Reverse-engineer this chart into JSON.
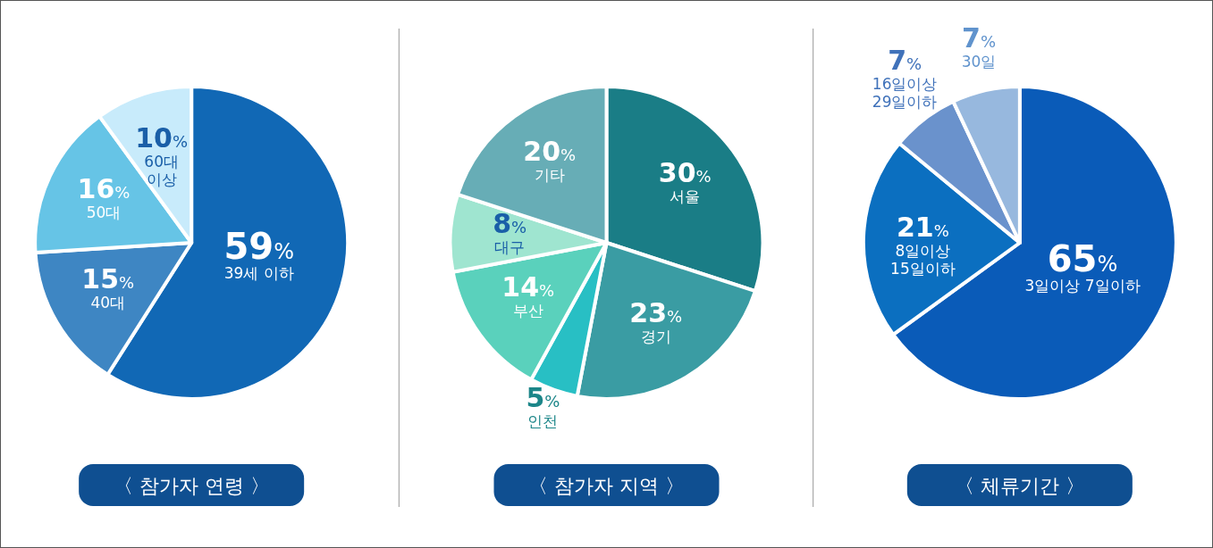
{
  "chart_data": [
    {
      "type": "pie",
      "title": "〈 참가자 연령 〉",
      "categories": [
        "39세 이하",
        "40대",
        "50대",
        "60대 이상"
      ],
      "values": [
        59,
        15,
        16,
        10
      ],
      "colors": [
        "#1168b5",
        "#3e86c3",
        "#66c4e6",
        "#c8ebfb"
      ],
      "value_labels": [
        "59%",
        "15%",
        "16%",
        "10%"
      ]
    },
    {
      "type": "pie",
      "title": "〈 참가자 지역 〉",
      "categories": [
        "서울",
        "경기",
        "인천",
        "부산",
        "대구",
        "기타"
      ],
      "values": [
        30,
        23,
        5,
        14,
        8,
        20
      ],
      "colors": [
        "#1a7d86",
        "#3a9ca3",
        "#28bfc4",
        "#5ad1bc",
        "#9fe5d0",
        "#67adb6"
      ],
      "value_labels": [
        "30%",
        "23%",
        "5%",
        "14%",
        "8%",
        "20%"
      ]
    },
    {
      "type": "pie",
      "title": "〈 체류기간 〉",
      "categories": [
        "3일이상 7일이하",
        "8일이상 15일이하",
        "16일이상 29일이하",
        "30일"
      ],
      "values": [
        65,
        21,
        7,
        7
      ],
      "colors": [
        "#0a5bb8",
        "#0b6fc0",
        "#6a92cc",
        "#97b8de"
      ],
      "value_labels": [
        "65%",
        "21%",
        "7%",
        "7%"
      ]
    }
  ]
}
